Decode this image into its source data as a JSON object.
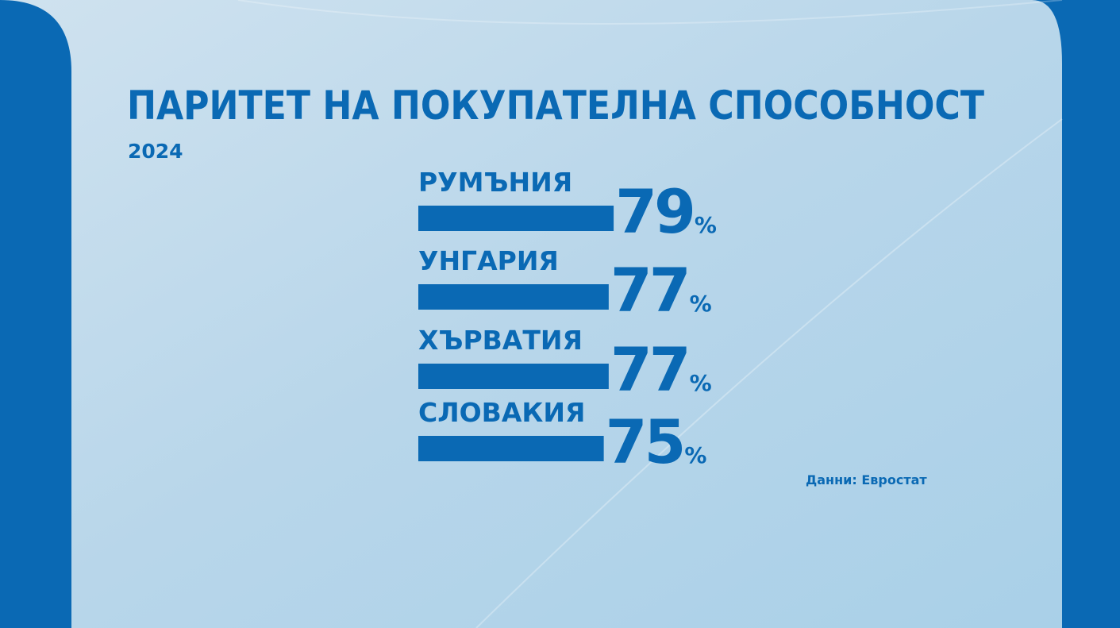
{
  "chart_data": {
    "type": "bar",
    "orientation": "horizontal",
    "title": "ПАРИТЕТ НА ПОКУПАТЕЛНА СПОСОБНОСТ",
    "subtitle": "2024",
    "categories": [
      "РУМЪНИЯ",
      "УНГАРИЯ",
      "ХЪРВАТИЯ",
      "СЛОВАКИЯ"
    ],
    "values": [
      79,
      77,
      77,
      75
    ],
    "unit": "%",
    "color": "#0a69b4",
    "source": "Данни: Евростат"
  }
}
